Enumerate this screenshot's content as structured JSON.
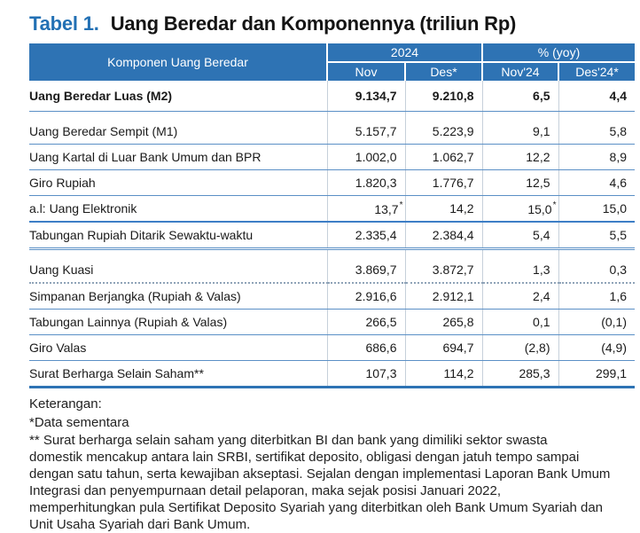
{
  "colors": {
    "header_bg": "#2E73B4",
    "title_blue": "#2270B4",
    "row_line_blue": "#5B90C6",
    "thick_bottom_line": "#2E73B4",
    "dotted_line": "#8FA3B8",
    "column_grid_line": "#C6D0DA",
    "header_text": "#FFFFFF",
    "body_text": "#1A1A1A"
  },
  "title": {
    "prefix": "Tabel 1.",
    "text": "Uang Beredar dan Komponennya (triliun Rp)"
  },
  "table": {
    "component_header": "Komponen Uang Beredar",
    "group_2024": "2024",
    "group_yoy": "% (yoy)",
    "columns": [
      "Nov",
      "Des*",
      "Nov'24",
      "Des'24*"
    ],
    "rows": [
      {
        "label": "Uang Beredar Luas (M2)",
        "indent": 0,
        "bold": true,
        "values": [
          "9.134,7",
          "9.210,8",
          "6,5",
          "4,4"
        ]
      },
      {
        "label": "Uang Beredar Sempit (M1)",
        "indent": 1,
        "bold": false,
        "values": [
          "5.157,7",
          "5.223,9",
          "9,1",
          "5,8"
        ]
      },
      {
        "label": "Uang Kartal di Luar Bank Umum dan BPR",
        "indent": 2,
        "bold": false,
        "values": [
          "1.002,0",
          "1.062,7",
          "12,2",
          "8,9"
        ]
      },
      {
        "label": "Giro Rupiah",
        "indent": 2,
        "bold": false,
        "values": [
          "1.820,3",
          "1.776,7",
          "12,5",
          "4,6"
        ]
      },
      {
        "label": "a.l: Uang Elektronik",
        "indent": 3,
        "bold": false,
        "values": [
          "13,7",
          "14,2",
          "15,0",
          "15,0"
        ],
        "sup": "*"
      },
      {
        "label": "Tabungan Rupiah Ditarik Sewaktu-waktu",
        "indent": 2,
        "bold": false,
        "values": [
          "2.335,4",
          "2.384,4",
          "5,4",
          "5,5"
        ]
      },
      {
        "label": "Uang Kuasi",
        "indent": 1,
        "bold": false,
        "values": [
          "3.869,7",
          "3.872,7",
          "1,3",
          "0,3"
        ]
      },
      {
        "label": "Simpanan Berjangka (Rupiah & Valas)",
        "indent": 2,
        "bold": false,
        "values": [
          "2.916,6",
          "2.912,1",
          "2,4",
          "1,6"
        ]
      },
      {
        "label": "Tabungan Lainnya (Rupiah & Valas)",
        "indent": 2,
        "bold": false,
        "values": [
          "266,5",
          "265,8",
          "0,1",
          "(0,1)"
        ]
      },
      {
        "label": "Giro Valas",
        "indent": 2,
        "bold": false,
        "values": [
          "686,6",
          "694,7",
          "(2,8)",
          "(4,9)"
        ]
      },
      {
        "label": "Surat Berharga Selain Saham**",
        "indent": 1,
        "bold": false,
        "values": [
          "107,3",
          "114,2",
          "285,3",
          "299,1"
        ]
      }
    ]
  },
  "notes": {
    "heading": "Keterangan:",
    "note_asterisk": "*Data sementara",
    "note_double_asterisk_lines": [
      "** Surat berharga selain saham yang diterbitkan BI dan bank yang dimiliki sektor swasta",
      "domestik mencakup antara lain SRBI, sertifikat deposito, obligasi dengan jatuh tempo sampai",
      "dengan satu tahun, serta kewajiban akseptasi. Sejalan dengan implementasi Laporan Bank Umum",
      "Integrasi dan penyempurnaan detail pelaporan, maka sejak posisi Januari 2022,",
      "memperhitungkan pula Sertifikat Deposito Syariah yang diterbitkan oleh Bank Umum Syariah dan",
      "Unit Usaha Syariah dari Bank Umum."
    ]
  }
}
